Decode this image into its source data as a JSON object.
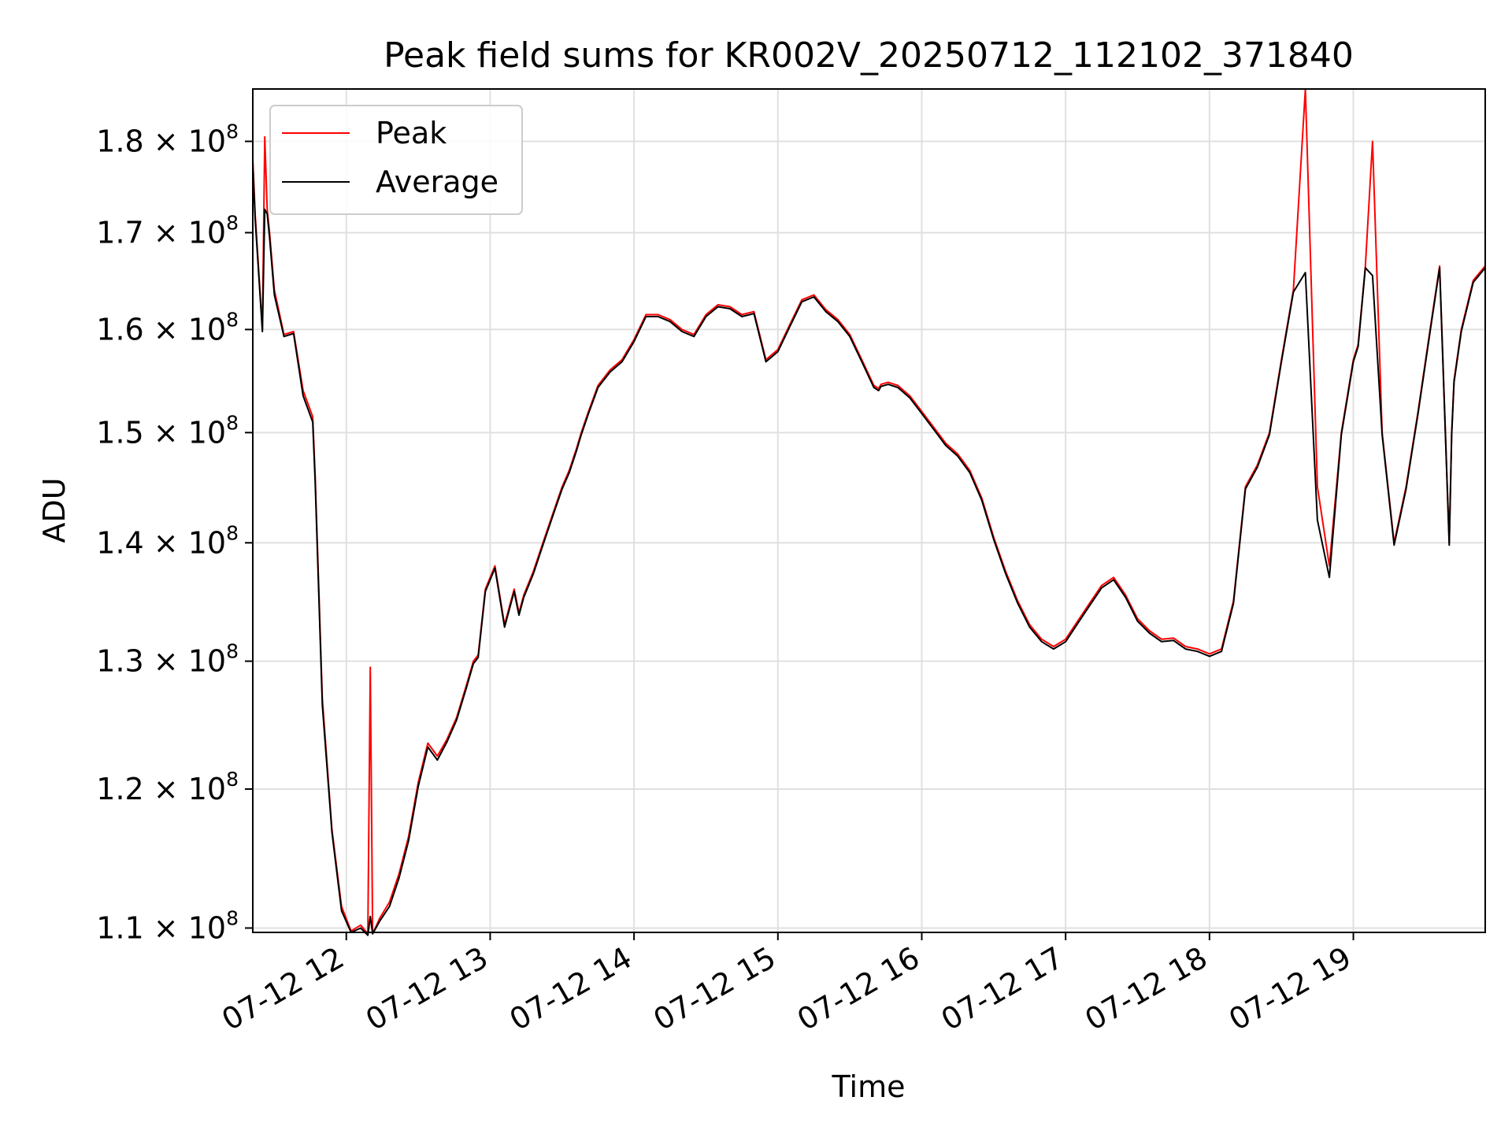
{
  "chart_data": {
    "type": "line",
    "title": "Peak field sums for KR002V_20250712_112102_371840",
    "xlabel": "Time",
    "ylabel": "ADU",
    "y_scale": "log",
    "grid": true,
    "legend_position": "top-left",
    "xlim": [
      "2025-07-12 11:21",
      "2025-07-12 19:55"
    ],
    "ylim": [
      109700000,
      186000000
    ],
    "x_ticks": [
      "07-12 12",
      "07-12 13",
      "07-12 14",
      "07-12 15",
      "07-12 16",
      "07-12 17",
      "07-12 18",
      "07-12 19"
    ],
    "y_ticks": [
      {
        "value": 110000000,
        "mantissa": "1.1",
        "exp": "8"
      },
      {
        "value": 120000000,
        "mantissa": "1.2",
        "exp": "8"
      },
      {
        "value": 130000000,
        "mantissa": "1.3",
        "exp": "8"
      },
      {
        "value": 140000000,
        "mantissa": "1.4",
        "exp": "8"
      },
      {
        "value": 150000000,
        "mantissa": "1.5",
        "exp": "8"
      },
      {
        "value": 160000000,
        "mantissa": "1.6",
        "exp": "8"
      },
      {
        "value": 170000000,
        "mantissa": "1.7",
        "exp": "8"
      },
      {
        "value": 180000000,
        "mantissa": "1.8",
        "exp": "8"
      }
    ],
    "series": [
      {
        "name": "Peak",
        "color": "#ff0000",
        "x": [
          "11:21",
          "11:22",
          "11:25",
          "11:26",
          "11:27",
          "11:28",
          "11:30",
          "11:34",
          "11:38",
          "11:42",
          "11:46",
          "11:47",
          "11:50",
          "11:54",
          "11:58",
          "12:02",
          "12:06",
          "12:09",
          "12:10",
          "12:11",
          "12:14",
          "12:18",
          "12:22",
          "12:26",
          "12:30",
          "12:34",
          "12:38",
          "12:42",
          "12:46",
          "12:50",
          "12:53",
          "12:55",
          "12:58",
          "13:02",
          "13:06",
          "13:10",
          "13:12",
          "13:14",
          "13:18",
          "13:22",
          "13:26",
          "13:30",
          "13:33",
          "13:36",
          "13:38",
          "13:41",
          "13:45",
          "13:50",
          "13:55",
          "14:00",
          "14:05",
          "14:10",
          "14:15",
          "14:20",
          "14:25",
          "14:30",
          "14:35",
          "14:40",
          "14:45",
          "14:50",
          "14:55",
          "15:00",
          "15:05",
          "15:10",
          "15:15",
          "15:20",
          "15:25",
          "15:30",
          "15:35",
          "15:40",
          "15:42",
          "15:43",
          "15:46",
          "15:50",
          "15:55",
          "16:00",
          "16:05",
          "16:10",
          "16:15",
          "16:20",
          "16:25",
          "16:30",
          "16:35",
          "16:40",
          "16:45",
          "16:50",
          "16:55",
          "17:00",
          "17:05",
          "17:10",
          "17:15",
          "17:20",
          "17:25",
          "17:30",
          "17:35",
          "17:40",
          "17:45",
          "17:50",
          "17:55",
          "18:00",
          "18:05",
          "18:10",
          "18:15",
          "18:20",
          "18:25",
          "18:30",
          "18:35",
          "18:40",
          "18:45",
          "18:50",
          "18:55",
          "19:00",
          "19:02",
          "19:05",
          "19:08",
          "19:12",
          "19:17",
          "19:22",
          "19:27",
          "19:32",
          "19:36",
          "19:40",
          "19:41",
          "19:42",
          "19:45",
          "19:50",
          "19:55"
        ],
        "values": [
          178000000,
          172000000,
          160000000,
          180500000,
          172500000,
          170000000,
          164000000,
          159500000,
          159800000,
          154000000,
          151500000,
          146000000,
          127000000,
          117000000,
          111500000,
          109800000,
          110200000,
          109600000,
          129500000,
          109600000,
          110700000,
          111800000,
          113800000,
          116500000,
          120500000,
          123500000,
          122500000,
          123800000,
          125500000,
          128000000,
          130000000,
          130500000,
          136000000,
          138000000,
          133000000,
          136000000,
          134000000,
          135500000,
          137500000,
          140000000,
          142500000,
          145000000,
          146500000,
          148500000,
          150000000,
          152000000,
          154500000,
          156000000,
          157000000,
          159000000,
          161500000,
          161500000,
          161000000,
          160000000,
          159500000,
          161500000,
          162500000,
          162300000,
          161500000,
          161800000,
          157000000,
          158000000,
          160500000,
          163000000,
          163500000,
          162000000,
          161000000,
          159500000,
          157000000,
          154500000,
          154200000,
          154600000,
          154800000,
          154500000,
          153500000,
          152000000,
          150500000,
          149000000,
          148000000,
          146500000,
          144000000,
          140500000,
          137500000,
          135000000,
          133000000,
          131800000,
          131200000,
          131800000,
          133300000,
          134800000,
          136300000,
          137000000,
          135500000,
          133500000,
          132500000,
          131800000,
          131900000,
          131200000,
          131000000,
          130600000,
          131000000,
          135000000,
          145000000,
          147000000,
          150000000,
          157000000,
          164000000,
          186000000,
          145000000,
          138000000,
          150000000,
          157000000,
          158500000,
          166500000,
          180000000,
          150000000,
          140000000,
          145000000,
          152000000,
          160000000,
          166500000,
          140000000,
          150000000,
          155000000,
          160000000,
          165000000,
          166500000
        ]
      },
      {
        "name": "Average",
        "color": "#000000",
        "x": [
          "11:21",
          "11:22",
          "11:25",
          "11:26",
          "11:27",
          "11:28",
          "11:30",
          "11:34",
          "11:38",
          "11:42",
          "11:46",
          "11:47",
          "11:50",
          "11:54",
          "11:58",
          "12:02",
          "12:06",
          "12:09",
          "12:10",
          "12:11",
          "12:14",
          "12:18",
          "12:22",
          "12:26",
          "12:30",
          "12:34",
          "12:38",
          "12:42",
          "12:46",
          "12:50",
          "12:53",
          "12:55",
          "12:58",
          "13:02",
          "13:06",
          "13:10",
          "13:12",
          "13:14",
          "13:18",
          "13:22",
          "13:26",
          "13:30",
          "13:33",
          "13:36",
          "13:38",
          "13:41",
          "13:45",
          "13:50",
          "13:55",
          "14:00",
          "14:05",
          "14:10",
          "14:15",
          "14:20",
          "14:25",
          "14:30",
          "14:35",
          "14:40",
          "14:45",
          "14:50",
          "14:55",
          "15:00",
          "15:05",
          "15:10",
          "15:15",
          "15:20",
          "15:25",
          "15:30",
          "15:35",
          "15:40",
          "15:42",
          "15:43",
          "15:46",
          "15:50",
          "15:55",
          "16:00",
          "16:05",
          "16:10",
          "16:15",
          "16:20",
          "16:25",
          "16:30",
          "16:35",
          "16:40",
          "16:45",
          "16:50",
          "16:55",
          "17:00",
          "17:05",
          "17:10",
          "17:15",
          "17:20",
          "17:25",
          "17:30",
          "17:35",
          "17:40",
          "17:45",
          "17:50",
          "17:55",
          "18:00",
          "18:05",
          "18:10",
          "18:15",
          "18:20",
          "18:25",
          "18:30",
          "18:35",
          "18:40",
          "18:45",
          "18:50",
          "18:55",
          "19:00",
          "19:02",
          "19:05",
          "19:08",
          "19:12",
          "19:17",
          "19:22",
          "19:27",
          "19:32",
          "19:36",
          "19:40",
          "19:41",
          "19:42",
          "19:45",
          "19:50",
          "19:55"
        ],
        "values": [
          177500000,
          171500000,
          159800000,
          172500000,
          172000000,
          169500000,
          163500000,
          159300000,
          159600000,
          153500000,
          151000000,
          145500000,
          126500000,
          116800000,
          111200000,
          109700000,
          110000000,
          109500000,
          110800000,
          109600000,
          110500000,
          111500000,
          113500000,
          116200000,
          120200000,
          123200000,
          122200000,
          123600000,
          125300000,
          127800000,
          129800000,
          130300000,
          135800000,
          137800000,
          132800000,
          135800000,
          133800000,
          135300000,
          137300000,
          139800000,
          142300000,
          144800000,
          146300000,
          148300000,
          149800000,
          151800000,
          154300000,
          155800000,
          156800000,
          158800000,
          161300000,
          161300000,
          160800000,
          159800000,
          159300000,
          161300000,
          162300000,
          162100000,
          161300000,
          161600000,
          156800000,
          157800000,
          160300000,
          162800000,
          163300000,
          161800000,
          160800000,
          159300000,
          156800000,
          154300000,
          154000000,
          154400000,
          154600000,
          154300000,
          153300000,
          151800000,
          150300000,
          148800000,
          147800000,
          146300000,
          143800000,
          140300000,
          137300000,
          134800000,
          132800000,
          131600000,
          131000000,
          131600000,
          133100000,
          134600000,
          136100000,
          136800000,
          135300000,
          133300000,
          132300000,
          131600000,
          131700000,
          131000000,
          130800000,
          130400000,
          130800000,
          134800000,
          144800000,
          146800000,
          149800000,
          156800000,
          163800000,
          165800000,
          142000000,
          137000000,
          149800000,
          156800000,
          158300000,
          166300000,
          165500000,
          149800000,
          139800000,
          144800000,
          151800000,
          159800000,
          166300000,
          139800000,
          149800000,
          154800000,
          159800000,
          164800000,
          166300000
        ]
      }
    ]
  }
}
